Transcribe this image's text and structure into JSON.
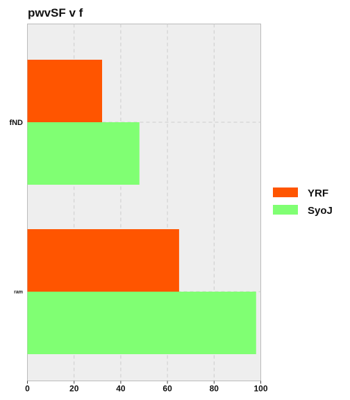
{
  "chart_data": {
    "type": "bar",
    "orientation": "horizontal",
    "title": "pwvSF  v f",
    "xlabel": "",
    "ylabel": "",
    "categories": [
      "fND",
      "ram"
    ],
    "series": [
      {
        "name": "YRF",
        "values": [
          32,
          65
        ],
        "color": "#ff5500"
      },
      {
        "name": "SyoJ",
        "values": [
          48,
          98
        ],
        "color": "#80ff73"
      }
    ],
    "xlim": [
      0,
      100
    ],
    "xticks": [
      0,
      20,
      40,
      60,
      80,
      100
    ],
    "grid": true,
    "legend_position": "right",
    "colors": {
      "plot_background": "#eeeeee",
      "grid": "#cccccc"
    }
  }
}
